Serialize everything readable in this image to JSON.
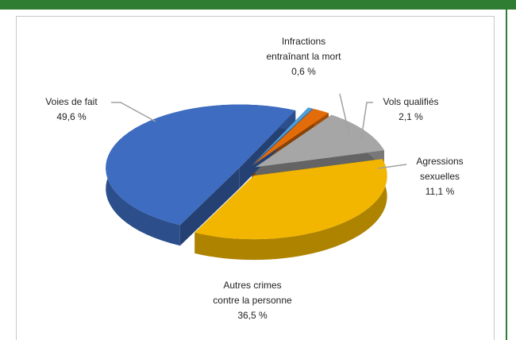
{
  "chart_data": {
    "type": "pie3d",
    "categories": [
      "Infractions entraînant la mort",
      "Vols qualifiés",
      "Agressions sexuelles",
      "Autres crimes contre la personne",
      "Voies de fait"
    ],
    "values": [
      0.6,
      2.1,
      11.1,
      36.5,
      49.6
    ],
    "value_labels": [
      "0,6 %",
      "2,1 %",
      "11,1 %",
      "36,5 %",
      "49,6 %"
    ],
    "colors": [
      "#4f9fd8",
      "#e36c0a",
      "#a6a6a6",
      "#f2b600",
      "#3d6cc0"
    ]
  }
}
